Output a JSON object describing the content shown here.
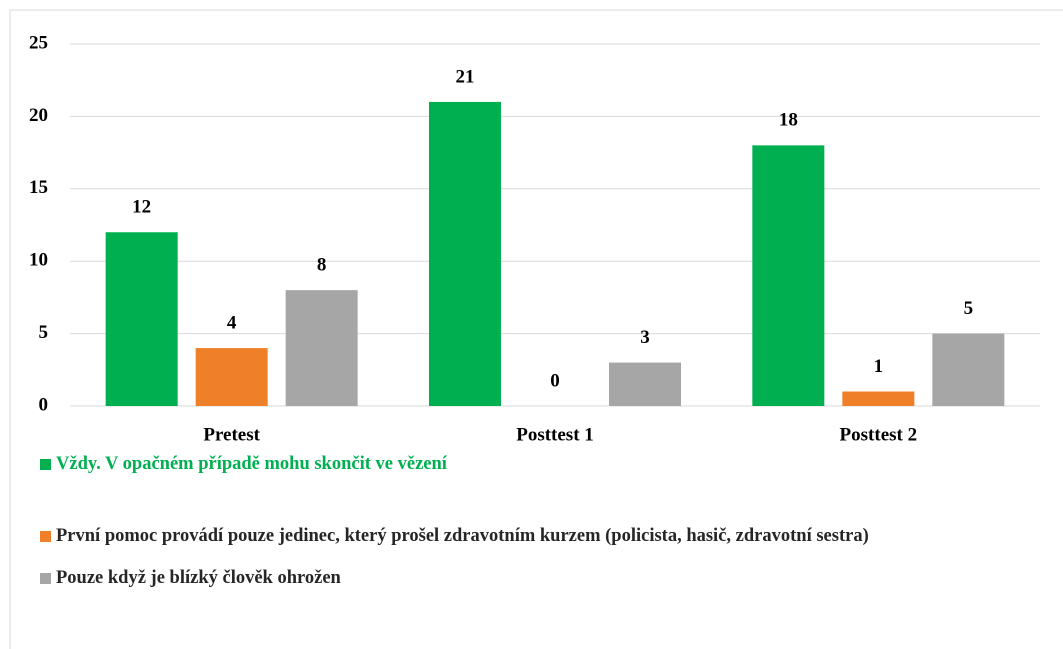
{
  "chart_data": {
    "type": "bar",
    "categories": [
      "Pretest",
      "Posttest 1",
      "Posttest 2"
    ],
    "series": [
      {
        "name": "Vždy. V opačném případě mohu skončit ve vězení",
        "color": "#00b050",
        "label_color": "#00b050",
        "values": [
          12,
          21,
          18
        ]
      },
      {
        "name": "První pomoc provádí pouze jedinec, který prošel zdravotním kurzem (policista, hasič, zdravotní sestra)",
        "color": "#f07f2a",
        "label_color": "#262626",
        "values": [
          4,
          0,
          1
        ]
      },
      {
        "name": "Pouze když je blízký člověk ohrožen",
        "color": "#a6a6a6",
        "label_color": "#262626",
        "values": [
          8,
          3,
          5
        ]
      }
    ],
    "ylim": [
      0,
      25
    ],
    "yticks": [
      0,
      5,
      10,
      15,
      20,
      25
    ],
    "grid": true,
    "legend": "bottom"
  }
}
